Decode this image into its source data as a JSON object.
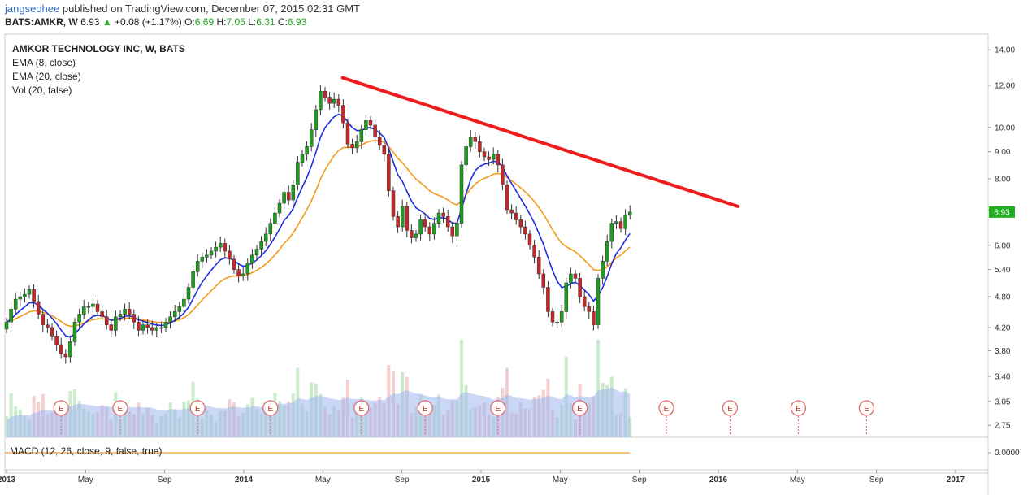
{
  "header": {
    "author": "jangseohee",
    "published_text": " published on TradingView.com, December 07, 2015 02:31 GMT",
    "symbol": "BATS:AMKR, W",
    "last": "6.93",
    "change_arrow": "▲",
    "change": "+0.08 (+1.17%)",
    "open_label": "O:",
    "open": "6.69",
    "high_label": "H:",
    "high": "7.05",
    "low_label": "L:",
    "low": "6.31",
    "close_label": "C:",
    "close": "6.93"
  },
  "legend": {
    "title": "AMKOR TECHNOLOGY INC, W, BATS",
    "ema8": "EMA (8, close)",
    "ema20": "EMA (20, close)",
    "vol": "Vol (20, false)",
    "macd": "MACD (12, 26, close, 9, false, true)"
  },
  "colors": {
    "up": "#1e9e1e",
    "down": "#c62828",
    "ema8": "#1f2ee0",
    "ema20": "#f39a1a",
    "trendline": "#ee1c1c",
    "volume_area": "#9fb6ee",
    "last_price_tag": "#22b022"
  },
  "chart_data": {
    "type": "candlestick",
    "timeframe": "weekly",
    "x_ticks": [
      {
        "label": "2013",
        "year": true
      },
      {
        "label": "May",
        "year": false
      },
      {
        "label": "Sep",
        "year": false
      },
      {
        "label": "2014",
        "year": true
      },
      {
        "label": "May",
        "year": false
      },
      {
        "label": "Sep",
        "year": false
      },
      {
        "label": "2015",
        "year": true
      },
      {
        "label": "May",
        "year": false
      },
      {
        "label": "Sep",
        "year": false
      },
      {
        "label": "2016",
        "year": true
      },
      {
        "label": "May",
        "year": false
      },
      {
        "label": "Sep",
        "year": false
      },
      {
        "label": "2017",
        "year": true
      }
    ],
    "x_range": [
      "2013-01",
      "2017-01"
    ],
    "y_ticks": [
      "14.00",
      "12.00",
      "10.00",
      "9.00",
      "8.00",
      "7.00",
      "6.00",
      "5.40",
      "4.80",
      "4.20",
      "3.80",
      "3.40",
      "3.05",
      "2.75"
    ],
    "y_scale": "log",
    "last_price_label": "6.93",
    "closes": [
      4.3,
      4.55,
      4.75,
      4.8,
      4.85,
      4.95,
      4.7,
      4.45,
      4.25,
      4.2,
      4.05,
      3.9,
      3.75,
      3.7,
      3.95,
      4.3,
      4.45,
      4.6,
      4.6,
      4.65,
      4.5,
      4.4,
      4.25,
      4.15,
      4.4,
      4.45,
      4.55,
      4.45,
      4.3,
      4.15,
      4.25,
      4.2,
      4.15,
      4.2,
      4.2,
      4.3,
      4.4,
      4.5,
      4.6,
      4.75,
      5.0,
      5.35,
      5.6,
      5.7,
      5.75,
      5.85,
      5.95,
      6.05,
      5.85,
      5.65,
      5.4,
      5.25,
      5.3,
      5.55,
      5.75,
      5.9,
      6.1,
      6.3,
      6.6,
      6.9,
      7.2,
      7.55,
      7.3,
      7.8,
      8.6,
      8.9,
      9.2,
      9.9,
      10.8,
      11.7,
      11.4,
      11.1,
      11.3,
      11.0,
      10.2,
      9.3,
      9.15,
      9.4,
      9.9,
      10.3,
      10.1,
      9.6,
      9.25,
      8.9,
      7.6,
      6.8,
      6.5,
      7.1,
      6.4,
      6.2,
      6.3,
      6.7,
      6.5,
      6.3,
      6.6,
      6.9,
      6.8,
      6.5,
      6.25,
      6.6,
      8.5,
      9.2,
      9.6,
      9.4,
      9.0,
      8.8,
      8.7,
      8.9,
      8.5,
      7.8,
      7.0,
      6.9,
      6.7,
      6.5,
      6.3,
      6.0,
      5.7,
      5.3,
      5.0,
      4.5,
      4.3,
      4.3,
      4.5,
      5.1,
      5.3,
      5.2,
      4.8,
      4.6,
      4.5,
      4.25,
      5.2,
      5.6,
      6.1,
      6.6,
      6.65,
      6.45,
      6.85,
      6.93
    ],
    "series": [
      {
        "name": "EMA (8, close)"
      },
      {
        "name": "EMA (20, close)"
      }
    ],
    "trendline": {
      "start": {
        "date": "2014-06",
        "price": 12.4
      },
      "end": {
        "date": "2016-02",
        "price": 7.1
      }
    },
    "earnings_marker_label": "E",
    "earnings_weeks": [
      12,
      25,
      42,
      58,
      78,
      92,
      108,
      126,
      145,
      159,
      174,
      189
    ],
    "macd_tick": "0.0000"
  }
}
